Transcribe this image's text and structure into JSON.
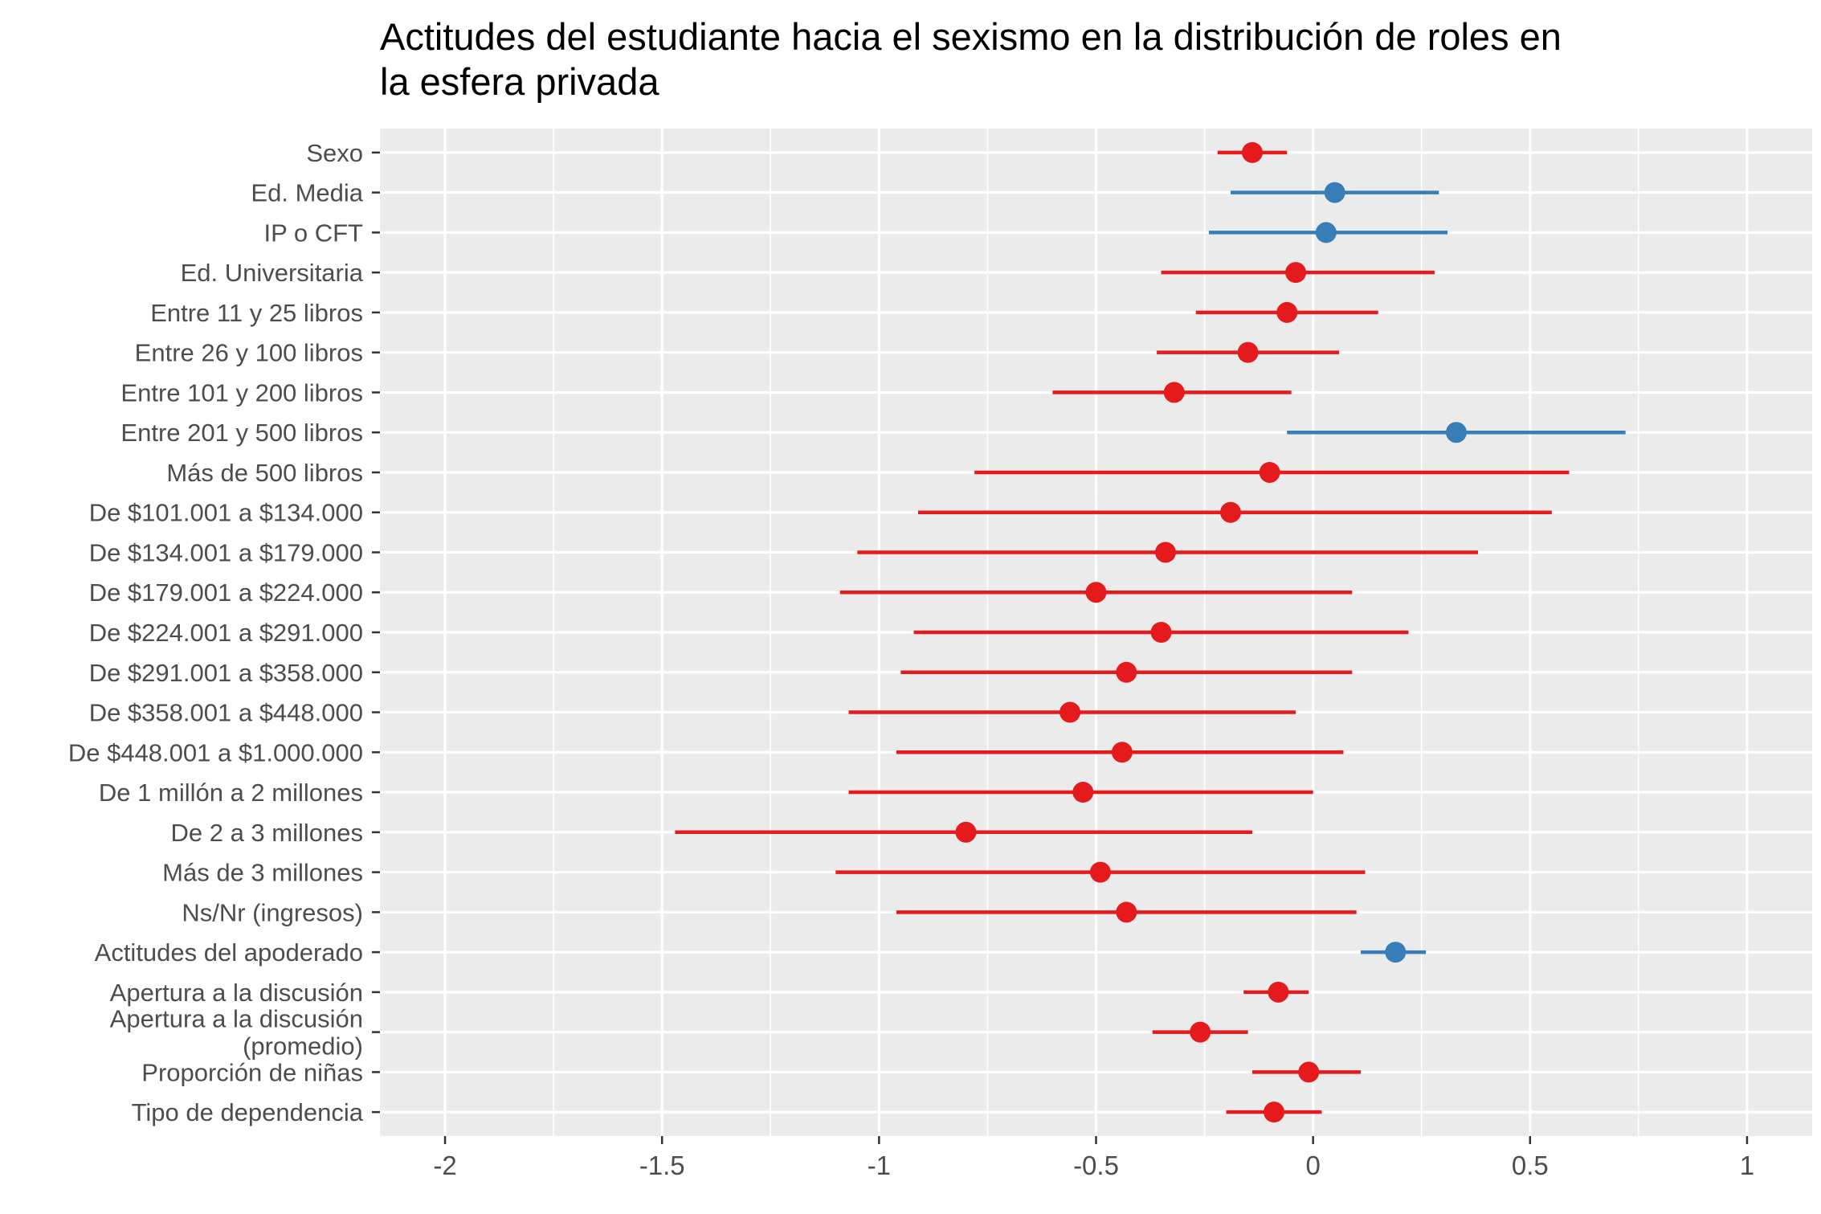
{
  "chart_data": {
    "type": "scatter",
    "subtype": "coefficient-plot",
    "title": "Actitudes del estudiante hacia el sexismo en la distribución de roles en la esfera privada",
    "title_lines": [
      "Actitudes del estudiante hacia el sexismo en la distribución de roles en",
      "la esfera privada"
    ],
    "xlabel": "",
    "ylabel": "",
    "xlim": [
      -2.15,
      1.15
    ],
    "x_ticks": [
      -2,
      -1.5,
      -1,
      -0.5,
      0,
      0.5,
      1
    ],
    "x_tick_labels": [
      "-2",
      "-1.5",
      "-1",
      "-0.5",
      "0",
      "0.5",
      "1"
    ],
    "grid": true,
    "legend": "none",
    "colors": {
      "negative": "#e41a1c",
      "positive": "#377eb8",
      "panel": "#ebebeb",
      "grid": "#ffffff",
      "axis_text": "#4d4d4d"
    },
    "points": [
      {
        "label": [
          "Sexo"
        ],
        "estimate": -0.14,
        "low": -0.22,
        "high": -0.06,
        "group": "negative"
      },
      {
        "label": [
          "Ed. Media"
        ],
        "estimate": 0.05,
        "low": -0.19,
        "high": 0.29,
        "group": "positive"
      },
      {
        "label": [
          "IP o CFT"
        ],
        "estimate": 0.03,
        "low": -0.24,
        "high": 0.31,
        "group": "positive"
      },
      {
        "label": [
          "Ed. Universitaria"
        ],
        "estimate": -0.04,
        "low": -0.35,
        "high": 0.28,
        "group": "negative"
      },
      {
        "label": [
          "Entre 11 y 25 libros"
        ],
        "estimate": -0.06,
        "low": -0.27,
        "high": 0.15,
        "group": "negative"
      },
      {
        "label": [
          "Entre 26 y 100 libros"
        ],
        "estimate": -0.15,
        "low": -0.36,
        "high": 0.06,
        "group": "negative"
      },
      {
        "label": [
          "Entre 101 y 200 libros"
        ],
        "estimate": -0.32,
        "low": -0.6,
        "high": -0.05,
        "group": "negative"
      },
      {
        "label": [
          "Entre 201 y 500 libros"
        ],
        "estimate": 0.33,
        "low": -0.06,
        "high": 0.72,
        "group": "positive"
      },
      {
        "label": [
          "Más de 500 libros"
        ],
        "estimate": -0.1,
        "low": -0.78,
        "high": 0.59,
        "group": "negative"
      },
      {
        "label": [
          "De $101.001 a $134.000"
        ],
        "estimate": -0.19,
        "low": -0.91,
        "high": 0.55,
        "group": "negative"
      },
      {
        "label": [
          "De $134.001 a $179.000"
        ],
        "estimate": -0.34,
        "low": -1.05,
        "high": 0.38,
        "group": "negative"
      },
      {
        "label": [
          "De $179.001 a $224.000"
        ],
        "estimate": -0.5,
        "low": -1.09,
        "high": 0.09,
        "group": "negative"
      },
      {
        "label": [
          "De $224.001 a $291.000"
        ],
        "estimate": -0.35,
        "low": -0.92,
        "high": 0.22,
        "group": "negative"
      },
      {
        "label": [
          "De $291.001 a $358.000"
        ],
        "estimate": -0.43,
        "low": -0.95,
        "high": 0.09,
        "group": "negative"
      },
      {
        "label": [
          "De $358.001 a $448.000"
        ],
        "estimate": -0.56,
        "low": -1.07,
        "high": -0.04,
        "group": "negative"
      },
      {
        "label": [
          "De $448.001 a $1.000.000"
        ],
        "estimate": -0.44,
        "low": -0.96,
        "high": 0.07,
        "group": "negative"
      },
      {
        "label": [
          "De 1 millón a 2 millones"
        ],
        "estimate": -0.53,
        "low": -1.07,
        "high": 0.0,
        "group": "negative"
      },
      {
        "label": [
          "De 2 a 3 millones"
        ],
        "estimate": -0.8,
        "low": -1.47,
        "high": -0.14,
        "group": "negative"
      },
      {
        "label": [
          "Más de 3 millones"
        ],
        "estimate": -0.49,
        "low": -1.1,
        "high": 0.12,
        "group": "negative"
      },
      {
        "label": [
          "Ns/Nr (ingresos)"
        ],
        "estimate": -0.43,
        "low": -0.96,
        "high": 0.1,
        "group": "negative"
      },
      {
        "label": [
          "Actitudes del apoderado"
        ],
        "estimate": 0.19,
        "low": 0.11,
        "high": 0.26,
        "group": "positive"
      },
      {
        "label": [
          "Apertura a la discusión"
        ],
        "estimate": -0.08,
        "low": -0.16,
        "high": -0.01,
        "group": "negative"
      },
      {
        "label": [
          "Apertura a la discusión",
          "(promedio)"
        ],
        "estimate": -0.26,
        "low": -0.37,
        "high": -0.15,
        "group": "negative"
      },
      {
        "label": [
          "Proporción de niñas"
        ],
        "estimate": -0.01,
        "low": -0.14,
        "high": 0.11,
        "group": "negative"
      },
      {
        "label": [
          "Tipo de dependencia"
        ],
        "estimate": -0.09,
        "low": -0.2,
        "high": 0.02,
        "group": "negative"
      }
    ]
  }
}
